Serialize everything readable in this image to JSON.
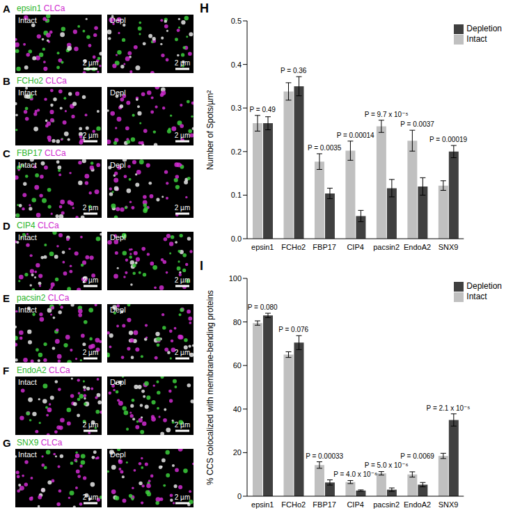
{
  "image_panels": [
    {
      "panel": "A",
      "green_label": "epsin1",
      "magenta_label": "CLCa",
      "images": [
        "Intact",
        "Depl"
      ],
      "scale_bar": "2 µm"
    },
    {
      "panel": "B",
      "green_label": "FCHo2",
      "magenta_label": "CLCa",
      "images": [
        "Intact",
        "Depl"
      ],
      "scale_bar": "2 µm"
    },
    {
      "panel": "C",
      "green_label": "FBP17",
      "magenta_label": "CLCa",
      "images": [
        "Intact",
        "Depl"
      ],
      "scale_bar": "2 µm"
    },
    {
      "panel": "D",
      "green_label": "CIP4",
      "magenta_label": "CLCa",
      "images": [
        "Intact",
        "Depl"
      ],
      "scale_bar": "2 µm"
    },
    {
      "panel": "E",
      "green_label": "pacsin2",
      "magenta_label": "CLCa",
      "images": [
        "Intact",
        "Depl"
      ],
      "scale_bar": "2 µm"
    },
    {
      "panel": "F",
      "green_label": "EndoA2",
      "magenta_label": "CLCa",
      "images": [
        "Intact",
        "Depl"
      ],
      "scale_bar": "2 µm"
    },
    {
      "panel": "G",
      "green_label": "SNX9",
      "magenta_label": "CLCa",
      "images": [
        "Intact",
        "Depl"
      ],
      "scale_bar": "2 µm"
    }
  ],
  "chart_data": [
    {
      "type": "bar",
      "panel": "H",
      "y_label": "Number of Spots/µm²",
      "categories": [
        "epsin1",
        "FCHo2",
        "FBP17",
        "CIP4",
        "pacsin2",
        "EndoA2",
        "SNX9"
      ],
      "series": [
        {
          "name": "Intact",
          "color": "#c0c0c0",
          "values": [
            0.265,
            0.338,
            0.177,
            0.202,
            0.258,
            0.225,
            0.122
          ],
          "errors": [
            0.018,
            0.02,
            0.018,
            0.022,
            0.014,
            0.024,
            0.011
          ]
        },
        {
          "name": "Depletion",
          "color": "#404040",
          "values": [
            0.265,
            0.35,
            0.104,
            0.052,
            0.116,
            0.12,
            0.2
          ],
          "errors": [
            0.015,
            0.022,
            0.012,
            0.013,
            0.02,
            0.02,
            0.014
          ]
        }
      ],
      "ylim": [
        0,
        0.5
      ],
      "yticks": [
        {
          "value": 0,
          "label": "0.0"
        },
        0.1,
        0.2,
        0.3,
        0.4,
        0.5
      ],
      "grid": false,
      "legend": "upper right",
      "annotations": [
        {
          "category": "epsin1",
          "text": "P = 0.49"
        },
        {
          "category": "FCHo2",
          "text": "P = 0.36"
        },
        {
          "category": "FBP17",
          "text": "P = 0.0035"
        },
        {
          "category": "CIP4",
          "text": "P = 0.00014"
        },
        {
          "category": "pacsin2",
          "text": "P = 9.7 x 10⁻⁵"
        },
        {
          "category": "EndoA2",
          "text": "P = 0.0037"
        },
        {
          "category": "SNX9",
          "text": "P = 0.00019"
        }
      ]
    },
    {
      "type": "bar",
      "panel": "I",
      "y_label": "% CCS colocalized with membrane-bending proteins",
      "categories": [
        "epsin1",
        "FCHo2",
        "FBP17",
        "CIP4",
        "pacsin2",
        "EndoA2",
        "SNX9"
      ],
      "series": [
        {
          "name": "Intact",
          "color": "#c0c0c0",
          "values": [
            79.5,
            65,
            14.3,
            6.5,
            10.5,
            10,
            18.5
          ],
          "errors": [
            1,
            1.3,
            1.5,
            0.7,
            0.8,
            1.2,
            1.2
          ]
        },
        {
          "name": "Depletion",
          "color": "#404040",
          "values": [
            83,
            70.5,
            6.3,
            2.6,
            3,
            5.3,
            35
          ],
          "errors": [
            1,
            3.2,
            1.2,
            0.3,
            0.8,
            1,
            2.8
          ]
        }
      ],
      "ylim": [
        0,
        100
      ],
      "yticks": [
        0,
        20,
        40,
        60,
        80,
        100
      ],
      "grid": false,
      "legend": "upper right",
      "annotations": [
        {
          "category": "epsin1",
          "text": "P = 0.080"
        },
        {
          "category": "FCHo2",
          "text": "P = 0.076"
        },
        {
          "category": "FBP17",
          "text": "P = 0.00033"
        },
        {
          "category": "CIP4",
          "text": "P = 4.0 x 10⁻⁶"
        },
        {
          "category": "pacsin2",
          "text": "P = 5.0 x 10⁻⁶"
        },
        {
          "category": "EndoA2",
          "text": "P = 0.0069"
        },
        {
          "category": "SNX9",
          "text": "P = 2.1 x 10⁻⁵"
        }
      ]
    }
  ]
}
